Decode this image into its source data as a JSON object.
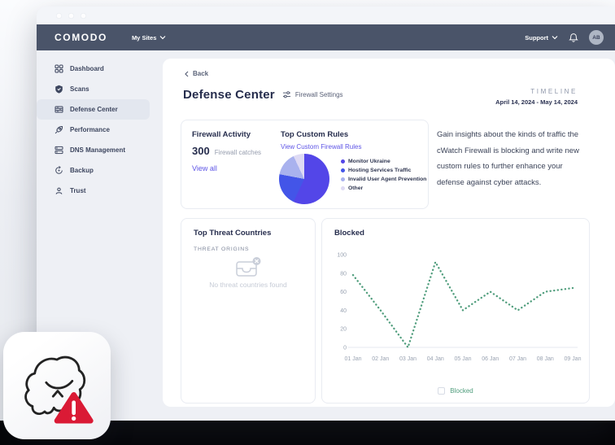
{
  "navbar": {
    "logo": "COMODO",
    "my_sites": "My Sites",
    "support": "Support",
    "avatar_initials": "AB"
  },
  "sidebar": {
    "items": [
      {
        "label": "Dashboard"
      },
      {
        "label": "Scans"
      },
      {
        "label": "Defense Center"
      },
      {
        "label": "Performance"
      },
      {
        "label": "DNS Management"
      },
      {
        "label": "Backup"
      },
      {
        "label": "Trust"
      }
    ]
  },
  "content": {
    "back_label": "Back",
    "page_title": "Defense Center",
    "page_subtitle": "Firewall Settings",
    "timeline_label": "TIMELINE",
    "timeline_range": "April 14, 2024 - May 14, 2024",
    "firewall_activity": {
      "title": "Firewall Activity",
      "count": "300",
      "count_caption": "Firewall catches",
      "view_all": "View all"
    },
    "top_custom_rules": {
      "title": "Top Custom Rules",
      "link": "View Custom Firewall Rules"
    },
    "insight_text": "Gain insights about the kinds of traffic the cWatch Firewall is blocking and write new custom rules to further enhance your defense against cyber attacks.",
    "top_threat_countries": {
      "title": "Top Threat Countries",
      "subtitle": "THREAT ORIGINS",
      "empty_text": "No threat countries found"
    },
    "blocked": {
      "title": "Blocked"
    }
  },
  "colors": {
    "accent_link": "#5E55E6",
    "line_green": "#4F9D7C",
    "alert_red": "#DA1A35",
    "navbar": "#4A5469"
  },
  "chart_data": [
    {
      "type": "pie",
      "title": "Top Custom Rules",
      "labels": [
        "Monitor Ukraine",
        "Hosting Services Traffic",
        "Invalid User Agent Prevention",
        "Other"
      ],
      "values": [
        57,
        21,
        15,
        7
      ],
      "colors": [
        "#5346E8",
        "#4355E8",
        "#A9B2EE",
        "#DEDAF4"
      ],
      "legend_position": "right"
    },
    {
      "type": "line",
      "title": "Blocked",
      "x": [
        "01 Jan",
        "02 Jan",
        "03 Jan",
        "04 Jan",
        "05 Jan",
        "06 Jan",
        "07 Jan",
        "08 Jan",
        "09 Jan"
      ],
      "series": [
        {
          "name": "Blocked",
          "values": [
            78,
            40,
            0,
            92,
            40,
            60,
            40,
            60,
            64
          ]
        }
      ],
      "ylim": [
        0,
        100
      ],
      "yticks": [
        0,
        20,
        40,
        60,
        80,
        100
      ],
      "line_style": "dotted",
      "color": "#4F9D7C",
      "grid": false,
      "legend_position": "bottom"
    }
  ]
}
